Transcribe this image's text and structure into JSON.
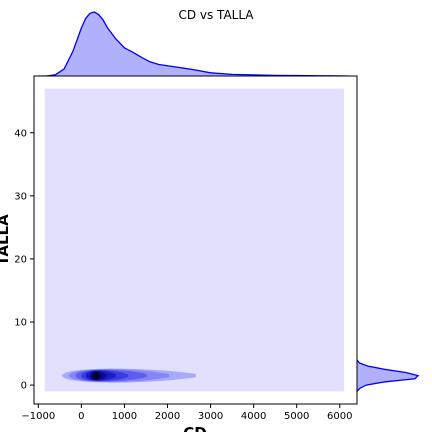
{
  "chart_data": {
    "type": "jointplot-kde",
    "title": "CD vs TALLA",
    "xlabel": "CD",
    "ylabel": "TALLA",
    "xlim": [
      -1100,
      6400
    ],
    "ylim": [
      -3,
      49
    ],
    "x_ticks": [
      -1000,
      0,
      1000,
      2000,
      3000,
      4000,
      5000,
      6000
    ],
    "y_ticks": [
      0,
      10,
      20,
      30,
      40
    ],
    "grid": false,
    "color": "#0000ff",
    "fill_color": "#b0b0fb",
    "joint_background_color": "#e1e1fd",
    "joint_background_extent": {
      "x": [
        -850,
        6100
      ],
      "y": [
        -1,
        47
      ]
    },
    "joint_density_peak": {
      "x": 350,
      "y": 1.5
    },
    "joint_contour_extent": {
      "x": [
        -450,
        2500
      ],
      "y": [
        0.2,
        2.8
      ]
    },
    "marginal_x": {
      "x": [
        -1000,
        -800,
        -600,
        -400,
        -200,
        0,
        100,
        200,
        300,
        400,
        500,
        600,
        800,
        1000,
        1200,
        1400,
        1600,
        1800,
        2000,
        2200,
        2400,
        2600,
        3000,
        3500,
        4000,
        4500,
        5000,
        5500,
        6000,
        6200
      ],
      "density": [
        0.0,
        0.002,
        0.02,
        0.11,
        0.38,
        0.75,
        0.9,
        0.98,
        1.0,
        0.96,
        0.88,
        0.76,
        0.58,
        0.44,
        0.37,
        0.29,
        0.22,
        0.18,
        0.16,
        0.14,
        0.12,
        0.1,
        0.05,
        0.025,
        0.017,
        0.01,
        0.007,
        0.004,
        0.001,
        0.0
      ]
    },
    "marginal_y": {
      "y": [
        -1,
        -0.5,
        0,
        0.5,
        1,
        1.5,
        2,
        2.5,
        3,
        3.5,
        4
      ],
      "density": [
        0.0,
        0.05,
        0.15,
        0.45,
        0.95,
        1.0,
        0.8,
        0.45,
        0.18,
        0.04,
        0.0
      ]
    }
  }
}
